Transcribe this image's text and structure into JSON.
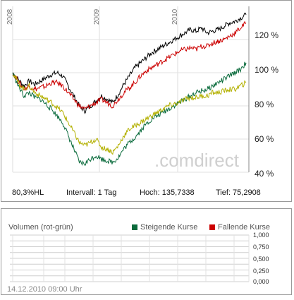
{
  "chart_data": {
    "type": "line",
    "x_ticks": [
      "2008",
      "2009",
      "2010"
    ],
    "y_ticks": [
      "120 %",
      "100 %",
      "80 %",
      "60 %",
      "40 %"
    ],
    "ylim": [
      40,
      140
    ],
    "watermark": "comdirect",
    "series": [
      {
        "color": "#000000",
        "values": [
          100,
          96,
          92,
          95,
          93,
          95,
          97,
          99,
          100,
          98,
          92,
          86,
          80,
          77,
          80,
          83,
          86,
          84,
          82,
          87,
          93,
          98,
          103,
          106,
          109,
          112,
          114,
          116,
          118,
          120,
          122,
          124,
          126,
          125,
          127,
          124,
          125,
          126,
          128,
          130,
          131,
          133,
          135
        ]
      },
      {
        "color": "#cc0000",
        "values": [
          100,
          95,
          90,
          92,
          90,
          91,
          92,
          94,
          94,
          92,
          88,
          84,
          80,
          78,
          80,
          82,
          84,
          82,
          80,
          84,
          88,
          91,
          94,
          98,
          101,
          103,
          105,
          107,
          109,
          111,
          113,
          114,
          115,
          114,
          116,
          116,
          118,
          119,
          120,
          122,
          124,
          127,
          130
        ]
      },
      {
        "color": "#0a6b3c",
        "values": [
          100,
          92,
          86,
          88,
          85,
          84,
          81,
          78,
          74,
          70,
          62,
          54,
          46,
          45,
          48,
          50,
          48,
          47,
          46,
          49,
          54,
          58,
          61,
          65,
          69,
          72,
          74,
          76,
          78,
          80,
          82,
          84,
          86,
          88,
          89,
          90,
          92,
          94,
          96,
          98,
          100,
          102,
          106
        ]
      },
      {
        "color": "#b3b000",
        "values": [
          100,
          94,
          90,
          92,
          88,
          86,
          84,
          82,
          79,
          76,
          70,
          64,
          58,
          56,
          58,
          60,
          55,
          54,
          52,
          56,
          62,
          66,
          68,
          70,
          72,
          74,
          76,
          78,
          80,
          81,
          82,
          84,
          85,
          85,
          86,
          86,
          88,
          88,
          89,
          90,
          90,
          92,
          94
        ]
      }
    ]
  },
  "info": {
    "hl": "80,3%HL",
    "interval": "Intervall: 1 Tag",
    "high": "Hoch: 135,7338",
    "low": "Tief: 75,2908"
  },
  "volume": {
    "title": "Volumen (rot-grün)",
    "legend_up": "Steigende Kurse",
    "legend_down": "Fallende Kurse",
    "up_color": "#0a6b3c",
    "down_color": "#cc0000",
    "y_ticks": [
      "1,000",
      "0,750",
      "0,500",
      "0,250",
      "0,000"
    ],
    "rows": [
      1.0,
      0.875,
      0.75,
      0.625,
      0.5,
      0.375,
      0.25,
      0.125,
      0.0
    ]
  },
  "timestamp": "14.12.2010 09:00 Uhr"
}
